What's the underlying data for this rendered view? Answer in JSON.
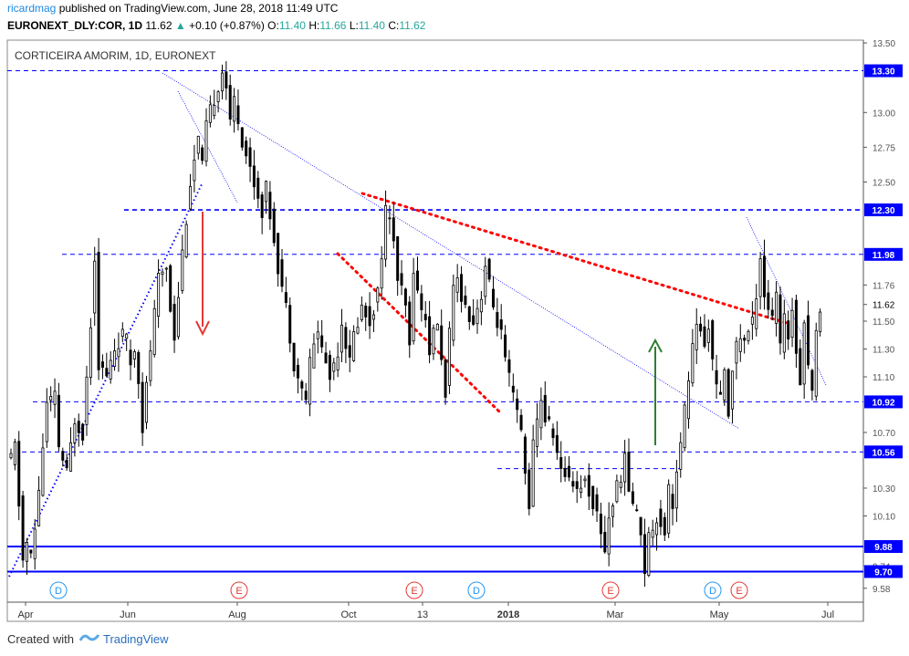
{
  "header": {
    "user": "ricardmag",
    "published_text": "published on TradingView.com, June 28, 2018 11:49 UTC",
    "symbol": "EURONEXT_DLY:COR, 1D",
    "last": "11.62",
    "change": "+0.10 (+0.87%)",
    "o_label": "O:",
    "o": "11.40",
    "h_label": "H:",
    "h": "11.66",
    "l_label": "L:",
    "l": "11.40",
    "c_label": "C:",
    "c": "11.62"
  },
  "footer": {
    "created_with": "Created with",
    "brand": "TradingView"
  },
  "colors": {
    "up": "#26a69a",
    "blue_line": "#0000ff",
    "red_dots": "#ff0000",
    "arrow_down": "#e53935",
    "arrow_up": "#2e7d32",
    "candle": "#000000",
    "event_d": "#2196f3",
    "event_e": "#e53935"
  },
  "chart_data": {
    "type": "candlestick",
    "title": "CORTICEIRA AMORIM, 1D, EURONEXT",
    "ylim": [
      9.48,
      13.52
    ],
    "grid": false,
    "y_ticks": [
      "13.50",
      "13.30",
      "13.00",
      "12.75",
      "12.50",
      "12.30",
      "11.98",
      "11.76",
      "11.62",
      "11.50",
      "11.30",
      "11.10",
      "10.92",
      "10.70",
      "10.56",
      "10.30",
      "10.10",
      "9.88",
      "9.74",
      "9.70",
      "9.58"
    ],
    "x_ticks": [
      "Apr",
      "Jun",
      "Aug",
      "Oct",
      "13",
      "2018",
      "Mar",
      "May",
      "Jul"
    ],
    "last_price": 11.62,
    "price_series": [
      [
        0,
        10.5
      ],
      [
        1,
        10.6
      ],
      [
        3,
        9.78
      ],
      [
        4,
        9.9
      ],
      [
        5,
        9.8
      ],
      [
        6,
        10.0
      ],
      [
        7,
        10.3
      ],
      [
        9,
        10.9
      ],
      [
        11,
        10.95
      ],
      [
        12,
        10.6
      ],
      [
        14,
        10.4
      ],
      [
        16,
        10.8
      ],
      [
        18,
        10.7
      ],
      [
        20,
        11.5
      ],
      [
        21,
        11.98
      ],
      [
        22,
        11.2
      ],
      [
        24,
        11.1
      ],
      [
        26,
        11.3
      ],
      [
        28,
        11.4
      ],
      [
        29,
        11.35
      ],
      [
        30,
        11.2
      ],
      [
        31,
        11.3
      ],
      [
        32,
        11.1
      ],
      [
        33,
        10.75
      ],
      [
        35,
        11.3
      ],
      [
        37,
        11.8
      ],
      [
        39,
        11.9
      ],
      [
        40,
        11.6
      ],
      [
        41,
        11.4
      ],
      [
        43,
        12.0
      ],
      [
        45,
        12.5
      ],
      [
        47,
        12.8
      ],
      [
        48,
        12.6
      ],
      [
        49,
        12.9
      ],
      [
        51,
        13.1
      ],
      [
        52,
        13.2
      ],
      [
        53,
        13.3
      ],
      [
        54,
        13.2
      ],
      [
        55,
        12.9
      ],
      [
        56,
        13.1
      ],
      [
        58,
        12.8
      ],
      [
        60,
        12.6
      ],
      [
        62,
        12.4
      ],
      [
        63,
        12.3
      ],
      [
        64,
        12.45
      ],
      [
        66,
        12.1
      ],
      [
        67,
        11.9
      ],
      [
        69,
        11.6
      ],
      [
        70,
        11.4
      ],
      [
        71,
        11.2
      ],
      [
        73,
        11.0
      ],
      [
        74,
        10.95
      ],
      [
        75,
        11.2
      ],
      [
        77,
        11.45
      ],
      [
        78,
        11.3
      ],
      [
        80,
        11.1
      ],
      [
        82,
        11.3
      ],
      [
        83,
        11.5
      ],
      [
        85,
        11.2
      ],
      [
        86,
        11.4
      ],
      [
        88,
        11.6
      ],
      [
        90,
        11.5
      ],
      [
        92,
        11.7
      ],
      [
        93,
        12.0
      ],
      [
        94,
        12.3
      ],
      [
        95,
        12.2
      ],
      [
        96,
        12.1
      ],
      [
        97,
        11.8
      ],
      [
        99,
        11.6
      ],
      [
        100,
        11.3
      ],
      [
        101,
        11.9
      ],
      [
        102,
        11.7
      ],
      [
        104,
        11.5
      ],
      [
        105,
        11.3
      ],
      [
        107,
        11.5
      ],
      [
        108,
        11.2
      ],
      [
        109,
        11.0
      ],
      [
        110,
        11.4
      ],
      [
        111,
        11.7
      ],
      [
        112,
        11.8
      ],
      [
        114,
        11.6
      ],
      [
        116,
        11.5
      ],
      [
        118,
        11.7
      ],
      [
        119,
        11.9
      ],
      [
        121,
        11.6
      ],
      [
        123,
        11.4
      ],
      [
        124,
        11.2
      ],
      [
        126,
        10.95
      ],
      [
        128,
        10.7
      ],
      [
        129,
        10.4
      ],
      [
        130,
        10.2
      ],
      [
        131,
        10.6
      ],
      [
        133,
        10.95
      ],
      [
        134,
        10.8
      ],
      [
        136,
        10.7
      ],
      [
        138,
        10.4
      ],
      [
        140,
        10.4
      ],
      [
        142,
        10.3
      ],
      [
        144,
        10.35
      ],
      [
        146,
        10.2
      ],
      [
        148,
        10.0
      ],
      [
        149,
        9.85
      ],
      [
        150,
        10.1
      ],
      [
        152,
        10.3
      ],
      [
        153,
        10.4
      ],
      [
        154,
        10.5
      ],
      [
        155,
        10.3
      ],
      [
        156,
        10.2
      ],
      [
        158,
        10.0
      ],
      [
        159,
        9.72
      ],
      [
        160,
        9.95
      ],
      [
        162,
        10.1
      ],
      [
        164,
        10.0
      ],
      [
        165,
        10.3
      ],
      [
        166,
        10.2
      ],
      [
        167,
        10.4
      ],
      [
        168,
        10.6
      ],
      [
        169,
        10.85
      ],
      [
        170,
        11.1
      ],
      [
        171,
        11.3
      ],
      [
        172,
        11.5
      ],
      [
        173,
        11.4
      ],
      [
        174,
        11.3
      ],
      [
        175,
        11.5
      ],
      [
        176,
        11.2
      ],
      [
        177,
        11.0
      ],
      [
        178,
        10.95
      ],
      [
        179,
        11.1
      ],
      [
        180,
        10.85
      ],
      [
        181,
        11.2
      ],
      [
        182,
        11.3
      ],
      [
        183,
        11.4
      ],
      [
        184,
        11.35
      ],
      [
        186,
        11.5
      ],
      [
        187,
        11.7
      ],
      [
        188,
        11.98
      ],
      [
        189,
        11.7
      ],
      [
        190,
        11.6
      ],
      [
        191,
        11.5
      ],
      [
        192,
        11.7
      ],
      [
        193,
        11.3
      ],
      [
        194,
        11.5
      ],
      [
        195,
        11.4
      ],
      [
        196,
        11.6
      ],
      [
        197,
        11.3
      ],
      [
        198,
        11.1
      ],
      [
        199,
        11.5
      ],
      [
        200,
        11.2
      ],
      [
        201,
        11.0
      ],
      [
        202,
        11.4
      ],
      [
        203,
        11.62
      ]
    ],
    "horizontal_levels": [
      {
        "value": 13.3,
        "label": "13.30",
        "style": "dashed"
      },
      {
        "value": 12.3,
        "label": "12.30",
        "style": "dashed"
      },
      {
        "value": 11.98,
        "label": "11.98",
        "style": "dashed"
      },
      {
        "value": 10.92,
        "label": "10.92",
        "style": "dashed"
      },
      {
        "value": 10.56,
        "label": "10.56",
        "style": "dashed"
      },
      {
        "value": 10.44,
        "label": "",
        "style": "dashed"
      },
      {
        "value": 9.88,
        "label": "9.88",
        "style": "solid"
      },
      {
        "value": 9.7,
        "label": "9.70",
        "style": "solid"
      }
    ],
    "events": [
      {
        "type": "D",
        "x": 64
      },
      {
        "type": "E",
        "x": 262
      },
      {
        "type": "E",
        "x": 454
      },
      {
        "type": "D",
        "x": 522
      },
      {
        "type": "E",
        "x": 669
      },
      {
        "type": "D",
        "x": 781
      },
      {
        "type": "E",
        "x": 810
      }
    ]
  }
}
